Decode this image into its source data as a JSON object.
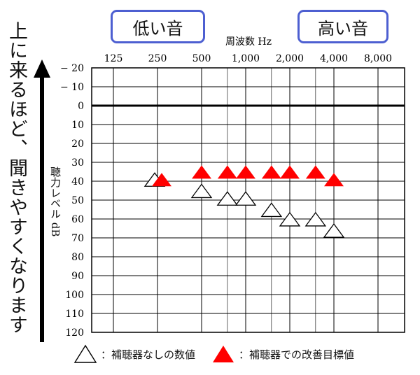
{
  "header": {
    "low_label": "低い音",
    "high_label": "高い音"
  },
  "side_note": "上に来るほど、聞きやすくなります",
  "legend": {
    "unaided": "：補聴器なしの数値",
    "aided": "：補聴器での改善目標値"
  },
  "chart_data": {
    "type": "scatter",
    "title": "",
    "xlabel": "周波数 Hz",
    "ylabel": "聴力レベル dB",
    "x_scale": "log2",
    "x_ticks": [
      125,
      250,
      500,
      1000,
      2000,
      4000,
      8000
    ],
    "x_tick_labels": [
      "125",
      "250",
      "500",
      "1,000",
      "2,000",
      "4,000",
      "8,000"
    ],
    "y_ticks": [
      -20,
      -10,
      0,
      10,
      20,
      30,
      40,
      50,
      60,
      70,
      80,
      90,
      100,
      110,
      120
    ],
    "y_tick_labels": [
      "− 20",
      "− 10",
      "0",
      "10",
      "20",
      "30",
      "40",
      "50",
      "60",
      "70",
      "80",
      "90",
      "100",
      "110",
      "120"
    ],
    "ylim": [
      -20,
      120
    ],
    "y_inverted": true,
    "grid": true,
    "series": [
      {
        "name": "補聴器なしの数値",
        "marker": "triangle-open",
        "color": "#000000",
        "x": [
          250,
          500,
          750,
          1000,
          1500,
          2000,
          3000,
          4000
        ],
        "y": [
          40,
          46,
          50,
          50,
          56,
          61,
          61,
          67
        ]
      },
      {
        "name": "補聴器での改善目標値",
        "marker": "triangle-filled",
        "color": "#ff0000",
        "x": [
          250,
          500,
          750,
          1000,
          1500,
          2000,
          3000,
          4000
        ],
        "y": [
          40,
          36,
          36,
          36,
          36,
          36,
          36,
          40
        ]
      }
    ]
  }
}
